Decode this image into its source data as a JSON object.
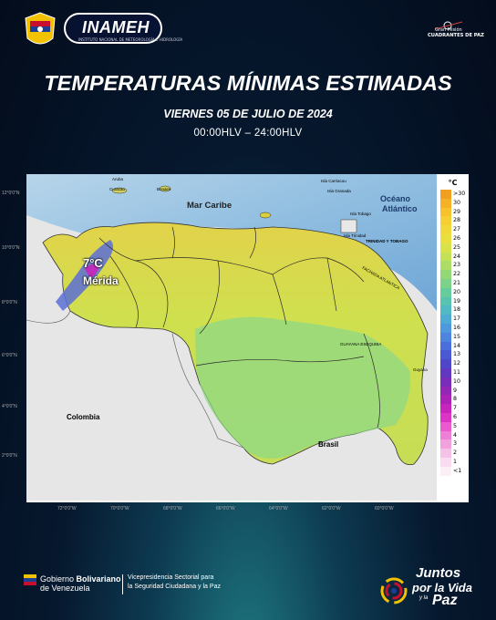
{
  "header": {
    "agency": "INAMEH",
    "agency_subtitle": "INSTITUTO NACIONAL DE METEOROLOGÍA E HIDROLOGÍA",
    "mission_line1": "Gran Misión",
    "mission_line2": "CUADRANTES DE PAZ"
  },
  "title": "TEMPERATURAS MÍNIMAS ESTIMADAS",
  "date": "VIERNES 05 DE JULIO DE 2024",
  "hours": "00:00HLV – 24:00HLV",
  "map": {
    "highlight_temp": "7°C",
    "highlight_city": "Mérida",
    "labels": {
      "mar_caribe": "Mar Caribe",
      "oceano1": "Océano",
      "oceano2": "Atlántico",
      "colombia": "Colombia",
      "brasil": "Brasil",
      "guyana": "Guyana",
      "curacao": "Curacao",
      "bonaire": "Bonaire",
      "aruba": "Aruba",
      "granada": "Isla Granada",
      "carriacou": "Isla Carriacou",
      "tobago": "Isla Tobago",
      "trinidad": "Isla Trinidad",
      "trinidad_tobago": "TRINIDAD Y TOBAGO",
      "fachada": "FACHADA ATLANTICA"
    },
    "lat_ticks": [
      "12°0'0\"N",
      "10°0'0\"N",
      "8°0'0\"N",
      "6°0'0\"N",
      "4°0'0\"N",
      "2°0'0\"N"
    ],
    "lon_ticks": [
      "72°0'0\"W",
      "70°0'0\"W",
      "68°0'0\"W",
      "66°0'0\"W",
      "64°0'0\"W",
      "62°0'0\"W",
      "60°0'0\"W"
    ]
  },
  "legend": {
    "unit": "°C",
    "entries": [
      {
        "label": ">30",
        "color": "#f0a020"
      },
      {
        "label": "30",
        "color": "#f5b227"
      },
      {
        "label": "29",
        "color": "#f7c22e"
      },
      {
        "label": "28",
        "color": "#f6cf35"
      },
      {
        "label": "27",
        "color": "#f1d93b"
      },
      {
        "label": "26",
        "color": "#e8e040"
      },
      {
        "label": "25",
        "color": "#d8e24a"
      },
      {
        "label": "24",
        "color": "#c4e157"
      },
      {
        "label": "23",
        "color": "#acdd66"
      },
      {
        "label": "22",
        "color": "#93d877"
      },
      {
        "label": "21",
        "color": "#7bd289"
      },
      {
        "label": "20",
        "color": "#66cc9c"
      },
      {
        "label": "19",
        "color": "#58c4b0"
      },
      {
        "label": "18",
        "color": "#51b9c4"
      },
      {
        "label": "17",
        "color": "#4fabd3"
      },
      {
        "label": "16",
        "color": "#4e99dc"
      },
      {
        "label": "15",
        "color": "#4c84de"
      },
      {
        "label": "14",
        "color": "#4a6edb"
      },
      {
        "label": "13",
        "color": "#4a58d3"
      },
      {
        "label": "12",
        "color": "#5046c9"
      },
      {
        "label": "11",
        "color": "#6138bf"
      },
      {
        "label": "10",
        "color": "#792db8"
      },
      {
        "label": "9",
        "color": "#9326b5"
      },
      {
        "label": "8",
        "color": "#ad22b6"
      },
      {
        "label": "7",
        "color": "#c725bd"
      },
      {
        "label": "6",
        "color": "#dc35c6"
      },
      {
        "label": "5",
        "color": "#e85ace"
      },
      {
        "label": "4",
        "color": "#ee7fd6"
      },
      {
        "label": "3",
        "color": "#f2a1de"
      },
      {
        "label": "2",
        "color": "#f6c1e6"
      },
      {
        "label": "1",
        "color": "#f9dcef"
      },
      {
        "label": "<1",
        "color": "#fcf0f7"
      }
    ]
  },
  "footer": {
    "gob_line1a": "Gobierno ",
    "gob_line1b": "Bolivariano",
    "gob_line2": "de Venezuela",
    "vice_line1": "Vicepresidencia Sectorial para",
    "vice_line2": "la Seguridad Ciudadana y la Paz",
    "juntos1": "Juntos",
    "juntos2": "por la Vida",
    "juntos3": "Paz",
    "juntos_y": "y la"
  }
}
